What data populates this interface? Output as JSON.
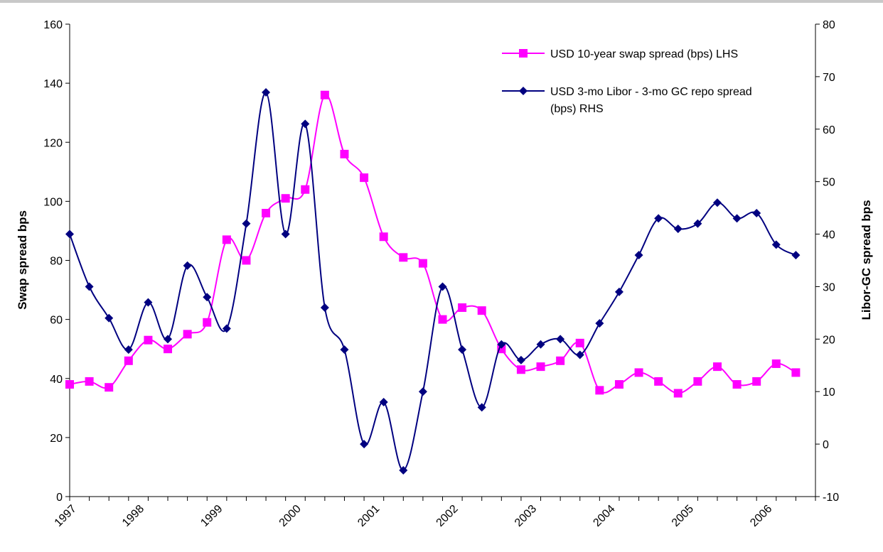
{
  "chart_data": {
    "type": "line",
    "title": "",
    "grid": false,
    "legend_position": "top-right",
    "x_ticks": [
      "1997",
      "1998",
      "1999",
      "2000",
      "2001",
      "2002",
      "2003",
      "2004",
      "2005",
      "2006"
    ],
    "y_left": {
      "label": "Swap spread bps",
      "ticks": [
        "0",
        "20",
        "40",
        "60",
        "80",
        "100",
        "120",
        "140",
        "160"
      ],
      "range": [
        0,
        160
      ]
    },
    "y_right": {
      "label": "Libor-GC spread bps",
      "ticks": [
        "-10",
        "0",
        "10",
        "20",
        "30",
        "40",
        "50",
        "60",
        "70",
        "80"
      ],
      "range": [
        -10,
        80
      ]
    },
    "series": [
      {
        "name": "USD 10-year swap spread (bps) LHS",
        "axis": "left",
        "color": "#ff00ff",
        "marker": "square",
        "values": [
          38,
          39,
          37,
          46,
          53,
          50,
          55,
          59,
          87,
          80,
          96,
          101,
          104,
          136,
          116,
          108,
          88,
          81,
          79,
          60,
          64,
          63,
          50,
          43,
          44,
          46,
          52,
          36,
          38,
          42,
          39,
          35,
          39,
          44,
          38,
          39,
          45,
          42
        ]
      },
      {
        "name": "USD 3-mo Libor - 3-mo GC repo spread (bps) RHS",
        "axis": "right",
        "color": "#000080",
        "marker": "diamond",
        "values": [
          40,
          30,
          24,
          18,
          27,
          20,
          34,
          28,
          22,
          42,
          67,
          40,
          61,
          26,
          18,
          0,
          8,
          -5,
          10,
          30,
          18,
          7,
          19,
          16,
          19,
          20,
          17,
          23,
          29,
          36,
          43,
          41,
          42,
          46,
          43,
          44,
          38,
          36
        ]
      }
    ],
    "x_tick_slot_index": [
      0,
      3.45,
      7.45,
      11.45,
      15.45,
      19.45,
      23.45,
      27.45,
      31.45,
      35.45
    ]
  }
}
